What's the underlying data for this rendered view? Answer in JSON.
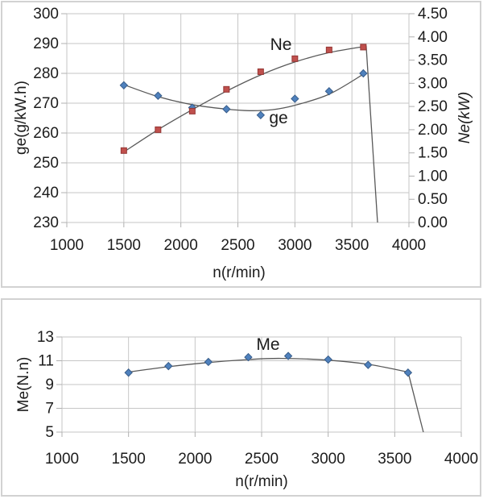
{
  "colors": {
    "background": "#ffffff",
    "panel_border": "#d2d2d2",
    "gridline": "#c6c6c6",
    "axis_tick": "#b0b0b0",
    "trend_line": "#595959",
    "text": "#1c1c1c",
    "series_blue": "#4f81bd",
    "series_blue_edge": "#385d8a",
    "series_red": "#c0504d",
    "series_red_edge": "#943634"
  },
  "chart_data": [
    {
      "type": "line",
      "title": "",
      "x_axis": {
        "label": "n(r/min)",
        "min": 1000,
        "max": 4000,
        "ticks": [
          "1000",
          "1500",
          "2000",
          "2500",
          "3000",
          "3500",
          "4000"
        ],
        "tick_values": [
          1000,
          1500,
          2000,
          2500,
          3000,
          3500,
          4000
        ]
      },
      "y_axis_left": {
        "label": "ge(g/kW.h)",
        "min": 230,
        "max": 300,
        "ticks": [
          "300",
          "290",
          "280",
          "270",
          "260",
          "250",
          "240",
          "230"
        ],
        "tick_values": [
          300,
          290,
          280,
          270,
          260,
          250,
          240,
          230
        ]
      },
      "y_axis_right": {
        "label": "Ne(kW)",
        "min": 0,
        "max": 4.5,
        "ticks": [
          "4.50",
          "4.00",
          "3.50",
          "3.00",
          "2.50",
          "2.00",
          "1.50",
          "1.00",
          "0.50",
          "0.00"
        ],
        "tick_values": [
          4.5,
          4.0,
          3.5,
          3.0,
          2.5,
          2.0,
          1.5,
          1.0,
          0.5,
          0.0
        ]
      },
      "grid": true,
      "legend": "inline-labels",
      "series": [
        {
          "name": "ge",
          "axis": "left",
          "marker": "diamond",
          "color": "#4f81bd",
          "marker_edge": "#385d8a",
          "x": [
            1500,
            1800,
            2100,
            2400,
            2700,
            3000,
            3300,
            3600
          ],
          "values": [
            276,
            272.5,
            268.5,
            268,
            266,
            271.5,
            274,
            280
          ],
          "trend": [
            [
              1500,
              276.2
            ],
            [
              1800,
              272.2
            ],
            [
              2100,
              269.5
            ],
            [
              2400,
              268.0
            ],
            [
              2600,
              267.5
            ],
            [
              2800,
              267.8
            ],
            [
              3000,
              269.3
            ],
            [
              3300,
              273.0
            ],
            [
              3600,
              279.7
            ]
          ]
        },
        {
          "name": "Ne",
          "axis": "right",
          "marker": "square",
          "color": "#c0504d",
          "marker_edge": "#943634",
          "x": [
            1500,
            1800,
            2100,
            2400,
            2700,
            3000,
            3300,
            3600
          ],
          "values": [
            1.55,
            2.0,
            2.4,
            2.87,
            3.25,
            3.53,
            3.72,
            3.78
          ],
          "trend": [
            [
              1500,
              1.52
            ],
            [
              1800,
              2.0
            ],
            [
              2100,
              2.43
            ],
            [
              2400,
              2.83
            ],
            [
              2700,
              3.18
            ],
            [
              3000,
              3.46
            ],
            [
              3300,
              3.66
            ],
            [
              3625,
              3.8
            ]
          ],
          "drop": [
            [
              3725,
              0.0
            ]
          ]
        }
      ],
      "annotations": [
        {
          "text": "Ne",
          "n": 2880,
          "value": 289.5
        },
        {
          "text": "ge",
          "n": 2850,
          "value": 264.8
        }
      ]
    },
    {
      "type": "line",
      "title": "",
      "x_axis": {
        "label": "n(r/min)",
        "min": 1000,
        "max": 4000,
        "ticks": [
          "1000",
          "1500",
          "2000",
          "2500",
          "3000",
          "3500",
          "4000"
        ],
        "tick_values": [
          1000,
          1500,
          2000,
          2500,
          3000,
          3500,
          4000
        ]
      },
      "y_axis_left": {
        "label": "Me(N.n)",
        "min": 5,
        "max": 13,
        "ticks": [
          "13",
          "11",
          "9",
          "7",
          "5"
        ],
        "tick_values": [
          13,
          11,
          9,
          7,
          5
        ]
      },
      "grid": true,
      "legend": "inline-labels",
      "series": [
        {
          "name": "Me",
          "axis": "left",
          "marker": "diamond",
          "color": "#4f81bd",
          "marker_edge": "#385d8a",
          "x": [
            1500,
            1800,
            2100,
            2400,
            2700,
            3000,
            3300,
            3600
          ],
          "values": [
            10.0,
            10.55,
            10.9,
            11.3,
            11.4,
            11.1,
            10.65,
            10.0
          ],
          "trend": [
            [
              1500,
              10.05
            ],
            [
              1800,
              10.5
            ],
            [
              2100,
              10.85
            ],
            [
              2400,
              11.1
            ],
            [
              2650,
              11.2
            ],
            [
              3000,
              11.05
            ],
            [
              3300,
              10.7
            ],
            [
              3600,
              10.05
            ]
          ],
          "drop": [
            [
              3715,
              5.0
            ]
          ]
        }
      ],
      "annotations": [
        {
          "text": "Me",
          "n": 2545,
          "value": 12.3
        }
      ]
    }
  ]
}
